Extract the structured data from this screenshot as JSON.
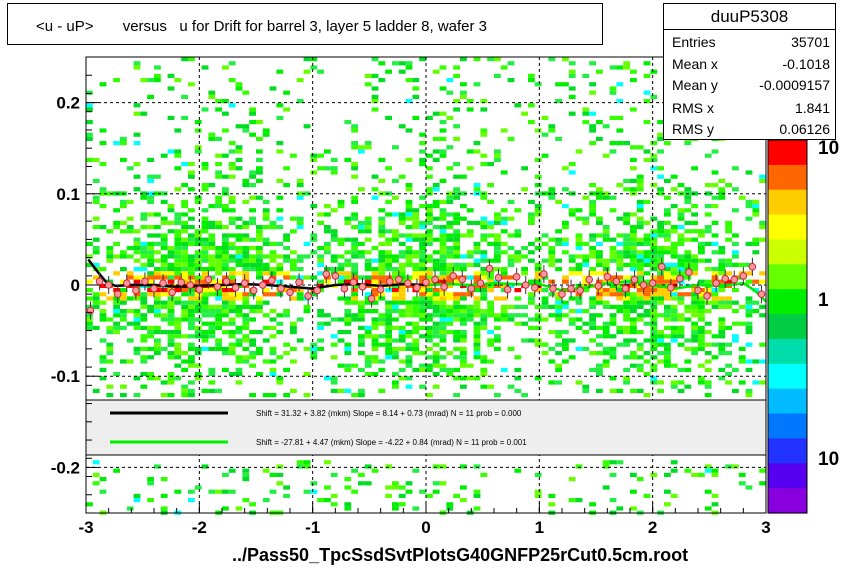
{
  "title": "<u - uP>       versus   u for Drift for barrel 3, layer 5 ladder 8, wafer 3",
  "footer": "../Pass50_TpcSsdSvtPlotsG40GNFP25rCut0.5cm.root",
  "stats": {
    "name": "duuP5308",
    "rows": [
      {
        "key": "Entries",
        "value": "35701"
      },
      {
        "key": "Mean x",
        "value": "-0.1018"
      },
      {
        "key": "Mean y",
        "value": "-0.0009157"
      },
      {
        "key": "RMS x",
        "value": "1.841"
      },
      {
        "key": "RMS y",
        "value": "0.06126"
      }
    ]
  },
  "legend": [
    {
      "text": "Shift =    31.32 + 3.82 (mkm) Slope =    8.14 + 0.73 (mrad)  N = 11 prob = 0.000",
      "color": "#000000"
    },
    {
      "text": "Shift =   -27.81 + 4.47 (mkm) Slope =    -4.22 + 0.84 (mrad)  N = 11 prob = 0.001",
      "color": "#00ee00"
    }
  ],
  "palette": {
    "labels": [
      "10",
      "1",
      "10"
    ],
    "colors": [
      "#ff0000",
      "#ff6600",
      "#ffcc00",
      "#ffff00",
      "#ccff00",
      "#66ff00",
      "#00ee00",
      "#00cc44",
      "#00ddaa",
      "#00ffff",
      "#00bbff",
      "#0077ff",
      "#2233ff",
      "#5500ee",
      "#8800dd"
    ]
  },
  "chart_data": {
    "type": "heatmap",
    "title": "<u - uP>       versus   u for Drift for barrel 3, layer 5 ladder 8, wafer 3",
    "xlabel": "",
    "ylabel": "",
    "xlim": [
      -3,
      3
    ],
    "ylim": [
      -0.25,
      0.25
    ],
    "xticks": [
      -3,
      -2,
      -1,
      0,
      1,
      2,
      3
    ],
    "yticks": [
      -0.2,
      -0.1,
      0,
      0.1,
      0.2
    ],
    "ytick_labels": [
      "-0.2",
      "-0.1",
      "0",
      "0.1",
      "0.2"
    ],
    "grid": true,
    "series": [
      {
        "name": "profile",
        "x": [
          -2.96,
          -2.88,
          -2.8,
          -2.72,
          -2.64,
          -2.56,
          -2.48,
          -2.4,
          -2.32,
          -2.24,
          -2.16,
          -2.08,
          -2.0,
          -1.92,
          -1.84,
          -1.76,
          -1.68,
          -1.6,
          -1.52,
          -1.44,
          -1.36,
          -1.28,
          -1.2,
          -1.12,
          -1.04,
          -0.96,
          -0.88,
          -0.8,
          -0.72,
          -0.64,
          -0.56,
          -0.48,
          -0.4,
          -0.32,
          -0.24,
          -0.16,
          -0.08,
          0.0,
          0.08,
          0.16,
          0.24,
          0.32,
          0.4,
          0.48,
          0.56,
          0.64,
          0.72,
          0.8,
          0.88,
          0.96,
          1.04,
          1.12,
          1.2,
          1.28,
          1.36,
          1.44,
          1.52,
          1.6,
          1.68,
          1.76,
          1.84,
          1.92,
          2.0,
          2.08,
          2.16,
          2.24,
          2.32,
          2.4,
          2.48,
          2.56,
          2.64,
          2.72,
          2.8,
          2.88,
          2.96
        ],
        "y": [
          -0.028,
          0.004,
          0.0,
          -0.01,
          0.002,
          -0.006,
          0.004,
          -0.004,
          0.002,
          -0.008,
          0.003,
          0.0,
          -0.005,
          0.006,
          -0.002,
          0.004,
          -0.003,
          0.002,
          -0.006,
          0.0,
          0.005,
          -0.004,
          -0.008,
          0.003,
          -0.012,
          -0.006,
          0.012,
          0.01,
          -0.004,
          0.003,
          -0.002,
          -0.015,
          -0.005,
          0.004,
          0.006,
          0.002,
          -0.003,
          0.003,
          0.006,
          -0.002,
          0.01,
          0.006,
          -0.004,
          0.002,
          0.018,
          0.008,
          -0.005,
          0.009,
          0.0,
          -0.003,
          0.012,
          -0.004,
          -0.01,
          -0.004,
          -0.006,
          0.006,
          -0.001,
          0.009,
          0.004,
          -0.004,
          0.006,
          0.0,
          0.002,
          0.02,
          -0.003,
          0.007,
          0.014,
          -0.006,
          -0.012,
          0.002,
          0.007,
          0.006,
          0.01,
          0.02,
          -0.01
        ]
      },
      {
        "name": "fit-black",
        "x": [
          -2.98,
          -2.9,
          -2.82,
          -2.74,
          -2.6,
          -2.4,
          -2.2,
          -2.0,
          -1.8,
          -1.6,
          -1.4,
          -1.2,
          -1.0,
          -0.8,
          -0.6,
          -0.4,
          -0.2,
          0.0
        ],
        "y": [
          0.028,
          0.015,
          0.003,
          -0.001,
          0.0,
          0.0,
          -0.002,
          -0.001,
          0.0,
          0.001,
          0.0,
          -0.002,
          -0.004,
          0.0,
          0.001,
          -0.001,
          0.001,
          0.0
        ]
      },
      {
        "name": "fit-green",
        "x": [
          0.0,
          0.2,
          0.4,
          0.6,
          0.8,
          1.0,
          1.2,
          1.4,
          1.6,
          1.8,
          2.0,
          2.2,
          2.4,
          2.6,
          2.8,
          2.9,
          3.0
        ],
        "y": [
          0.0,
          0.001,
          0.0,
          0.002,
          0.001,
          0.001,
          -0.006,
          -0.003,
          0.002,
          0.004,
          0.0,
          -0.004,
          0.0,
          -0.001,
          0.002,
          -0.006,
          -0.018
        ]
      }
    ]
  }
}
